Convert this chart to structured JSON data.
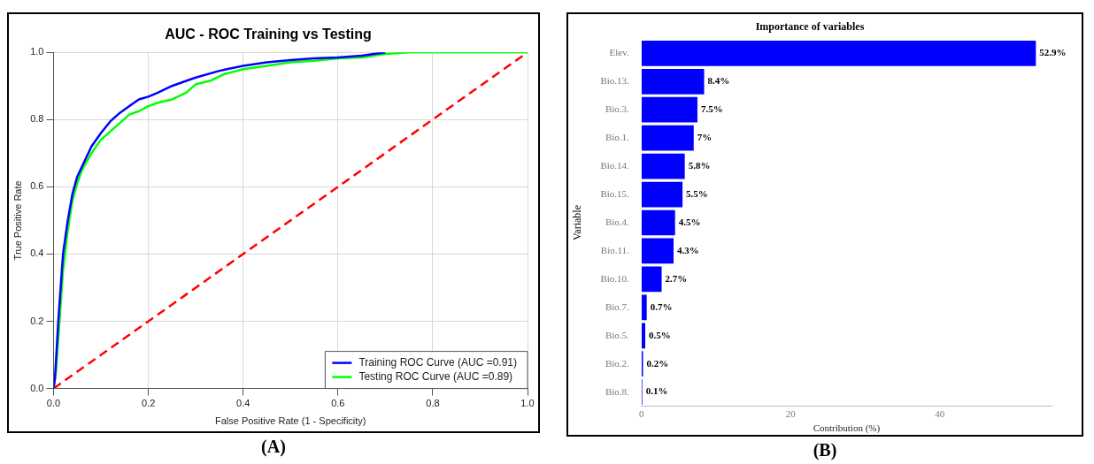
{
  "chart_data": [
    {
      "type": "line",
      "title": "AUC - ROC Training vs Testing",
      "xlabel": "False Positive Rate (1 - Specificity)",
      "ylabel": "True Positive Rate",
      "xlim": [
        0,
        1
      ],
      "ylim": [
        0,
        1
      ],
      "xticks": [
        {
          "value": 0,
          "label": "0.0"
        },
        0.2,
        0.4,
        0.6,
        0.8,
        {
          "value": 1,
          "label": "1.0"
        }
      ],
      "yticks": [
        {
          "value": 0,
          "label": "0.0"
        },
        0.2,
        0.4,
        0.6,
        0.8,
        {
          "value": 1,
          "label": "1.0"
        }
      ],
      "grid": true,
      "legend": "bottom right",
      "annotations": [
        "(A)"
      ],
      "series": [
        {
          "name": "Training ROC Curve (AUC =0.91)",
          "color": "#0000ff",
          "x": [
            0,
            0.003,
            0.01,
            0.02,
            0.03,
            0.04,
            0.05,
            0.06,
            0.08,
            0.1,
            0.12,
            0.14,
            0.16,
            0.18,
            0.2,
            0.22,
            0.25,
            0.28,
            0.3,
            0.35,
            0.4,
            0.45,
            0.5,
            0.55,
            0.6,
            0.65,
            0.7
          ],
          "values": [
            0,
            0.03,
            0.2,
            0.4,
            0.5,
            0.58,
            0.63,
            0.66,
            0.72,
            0.76,
            0.795,
            0.82,
            0.84,
            0.86,
            0.868,
            0.88,
            0.9,
            0.915,
            0.925,
            0.945,
            0.96,
            0.97,
            0.977,
            0.982,
            0.985,
            0.99,
            1
          ]
        },
        {
          "name": "Testing ROC Curve (AUC =0.89)",
          "color": "#00ff00",
          "x": [
            0,
            0.005,
            0.01,
            0.02,
            0.03,
            0.04,
            0.05,
            0.06,
            0.08,
            0.1,
            0.12,
            0.14,
            0.16,
            0.18,
            0.2,
            0.22,
            0.25,
            0.28,
            0.3,
            0.33,
            0.36,
            0.4,
            0.45,
            0.5,
            0.55,
            0.6,
            0.65,
            0.7,
            0.75,
            1
          ],
          "values": [
            0,
            0.05,
            0.15,
            0.35,
            0.47,
            0.56,
            0.61,
            0.65,
            0.7,
            0.74,
            0.765,
            0.79,
            0.815,
            0.825,
            0.84,
            0.85,
            0.86,
            0.88,
            0.905,
            0.915,
            0.935,
            0.95,
            0.96,
            0.97,
            0.975,
            0.982,
            0.985,
            0.995,
            1,
            1
          ]
        },
        {
          "color": "#ff0000",
          "x": [
            0,
            1
          ],
          "values": [
            0,
            1
          ],
          "line_style": "dashed"
        }
      ]
    },
    {
      "type": "bar",
      "orientation": "horizontal",
      "title": "Importance of variables",
      "xlabel": "Contribution (%)",
      "ylabel": "Variable",
      "categories": [
        "Elev.",
        "Bio.13.",
        "Bio.3.",
        "Bio.1.",
        "Bio.14.",
        "Bio.15.",
        "Bio.4.",
        "Bio.11.",
        "Bio.10.",
        "Bio.7.",
        "Bio.5.",
        "Bio.2.",
        "Bio.8."
      ],
      "xlim": [
        0,
        55
      ],
      "xticks": [
        0,
        20,
        40
      ],
      "annotations": [
        "(B)"
      ],
      "series": [
        {
          "color": "#0000ff",
          "values": [
            52.9,
            8.4,
            7.5,
            7,
            5.8,
            5.5,
            4.5,
            4.3,
            2.7,
            0.7,
            0.5,
            0.2,
            0.1
          ],
          "value_labels": [
            "52.9%",
            "8.4%",
            "7.5%",
            "7%",
            "5.8%",
            "5.5%",
            "4.5%",
            "4.3%",
            "2.7%",
            "0.7%",
            "0.5%",
            "0.2%",
            "0.1%"
          ]
        }
      ]
    }
  ]
}
